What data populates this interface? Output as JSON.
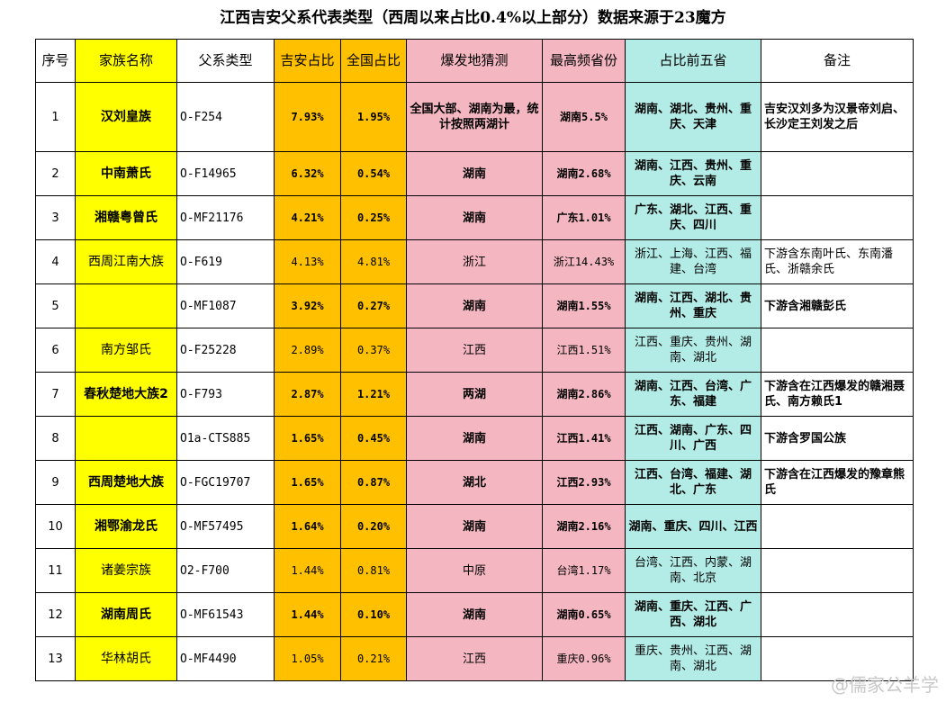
{
  "title": "江西吉安父系代表类型（西周以来占比0.4%以上部分）数据来源于23魔方",
  "headers": [
    "序号",
    "家族名称",
    "父系类型",
    "吉安占比",
    "全国占比",
    "爆发地猜测",
    "最高频省份",
    "占比前五省",
    "备注"
  ],
  "rows": [
    {
      "idx": "1",
      "family": "汉刘皇族",
      "type": "O-F254",
      "jian": "7.93%",
      "national": "1.95%",
      "origin": "全国大部、湖南为最，统计按照两湖计",
      "top_prov": "湖南5.5%",
      "top5": "湖南、湖北、贵州、重庆、天津",
      "note": "吉安汉刘多为汉景帝刘启、长沙定王刘发之后",
      "bold": true,
      "fam_bold": true
    },
    {
      "idx": "2",
      "family": "中南萧氏",
      "type": "O-F14965",
      "jian": "6.32%",
      "national": "0.54%",
      "origin": "湖南",
      "top_prov": "湖南2.68%",
      "top5": "湖南、江西、贵州、重庆、云南",
      "note": "",
      "bold": true,
      "fam_bold": true
    },
    {
      "idx": "3",
      "family": "湘赣粤曾氏",
      "type": "O-MF21176",
      "jian": "4.21%",
      "national": "0.25%",
      "origin": "湖南",
      "top_prov": "广东1.01%",
      "top5": "广东、湖北、江西、重庆、四川",
      "note": "",
      "bold": true,
      "fam_bold": true
    },
    {
      "idx": "4",
      "family": "西周江南大族",
      "type": "O-F619",
      "jian": "4.13%",
      "national": "4.81%",
      "origin": "浙江",
      "top_prov": "浙江14.43%",
      "top5": "浙江、上海、江西、福建、台湾",
      "note": "下游含东南叶氏、东南潘氏、浙赣余氏",
      "bold": false,
      "fam_bold": false
    },
    {
      "idx": "5",
      "family": "",
      "type": "O-MF1087",
      "jian": "3.92%",
      "national": "0.27%",
      "origin": "湖南",
      "top_prov": "湖南1.55%",
      "top5": "湖南、江西、湖北、贵州、重庆",
      "note": "下游含湘赣彭氏",
      "bold": true,
      "fam_bold": true
    },
    {
      "idx": "6",
      "family": "南方邹氏",
      "type": "O-F25228",
      "jian": "2.89%",
      "national": "0.37%",
      "origin": "江西",
      "top_prov": "江西1.51%",
      "top5": "江西、重庆、贵州、湖南、湖北",
      "note": "",
      "bold": false,
      "fam_bold": false
    },
    {
      "idx": "7",
      "family": "春秋楚地大族2",
      "type": "O-F793",
      "jian": "2.87%",
      "national": "1.21%",
      "origin": "两湖",
      "top_prov": "湖南2.86%",
      "top5": "湖南、江西、台湾、广东、福建",
      "note": "下游含在江西爆发的赣湘聂氏、南方赖氏1",
      "bold": true,
      "fam_bold": true
    },
    {
      "idx": "8",
      "family": "",
      "type": "O1a-CTS885",
      "jian": "1.65%",
      "national": "0.45%",
      "origin": "湖南",
      "top_prov": "江西1.41%",
      "top5": "江西、湖南、广东、四川、广西",
      "note": "下游含罗国公族",
      "bold": true,
      "fam_bold": true
    },
    {
      "idx": "9",
      "family": "西周楚地大族",
      "type": "O-FGC19707",
      "jian": "1.65%",
      "national": "0.87%",
      "origin": "湖北",
      "top_prov": "江西2.93%",
      "top5": "江西、台湾、福建、湖北、广东",
      "note": "下游含在江西爆发的豫章熊氏",
      "bold": true,
      "fam_bold": true
    },
    {
      "idx": "10",
      "family": "湘鄂渝龙氏",
      "type": "O-MF57495",
      "jian": "1.64%",
      "national": "0.20%",
      "origin": "湖南",
      "top_prov": "湖南2.16%",
      "top5": "湖南、重庆、四川、江西",
      "note": "",
      "bold": true,
      "fam_bold": true
    },
    {
      "idx": "11",
      "family": "诸姜宗族",
      "type": "O2-F700",
      "jian": "1.44%",
      "national": "0.81%",
      "origin": "中原",
      "top_prov": "台湾1.17%",
      "top5": "台湾、江西、内蒙、湖南、北京",
      "note": "",
      "bold": false,
      "fam_bold": false
    },
    {
      "idx": "12",
      "family": "湖南周氏",
      "type": "O-MF61543",
      "jian": "1.44%",
      "national": "0.10%",
      "origin": "湖南",
      "top_prov": "湖南0.65%",
      "top5": "湖南、重庆、江西、广西、湖北",
      "note": "",
      "bold": true,
      "fam_bold": true
    },
    {
      "idx": "13",
      "family": "华林胡氏",
      "type": "O-MF4490",
      "jian": "1.05%",
      "national": "0.21%",
      "origin": "江西",
      "top_prov": "重庆0.96%",
      "top5": "重庆、贵州、江西、湖南、湖北",
      "note": "",
      "bold": false,
      "fam_bold": false
    }
  ],
  "watermark": "@儒家公羊学",
  "colors": {
    "yellow": "#ffff00",
    "orange": "#ffc000",
    "pink": "#f4b6c0",
    "cyan": "#b3ece6"
  }
}
